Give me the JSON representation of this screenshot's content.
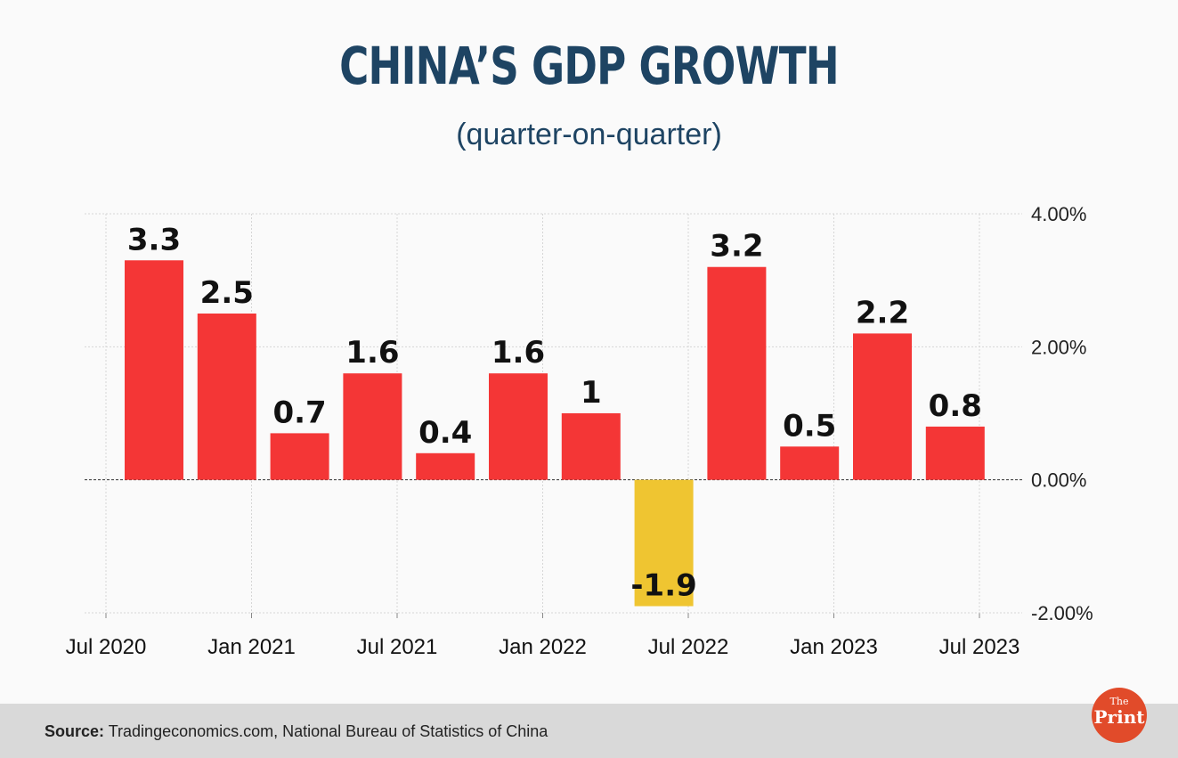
{
  "header": {
    "title": "CHINA’S GDP GROWTH",
    "subtitle": "(quarter-on-quarter)"
  },
  "footer": {
    "source_label": "Source:",
    "source_text": "Tradingeconomics.com, National Bureau of Statistics of China",
    "logo_line1": "The",
    "logo_line2": "Print"
  },
  "colors": {
    "positive_bar": "#f43636",
    "negative_bar": "#efc531",
    "title": "#1e4463"
  },
  "chart_data": {
    "type": "bar",
    "title": "CHINA’S GDP GROWTH",
    "subtitle": "(quarter-on-quarter)",
    "xlabel": "",
    "ylabel": "",
    "ylim": [
      -2,
      4
    ],
    "y_ticks": [
      4,
      2,
      0,
      -2
    ],
    "y_tick_labels": [
      "4.00%",
      "2.00%",
      "0.00%",
      "-2.00%"
    ],
    "x_tick_labels": [
      "Jul 2020",
      "Jan 2021",
      "Jul 2021",
      "Jan 2022",
      "Jul 2022",
      "Jan 2023",
      "Jul 2023"
    ],
    "values": [
      3.3,
      2.5,
      0.7,
      1.6,
      0.4,
      1.6,
      1,
      -1.9,
      3.2,
      0.5,
      2.2,
      0.8
    ],
    "data_labels": [
      "3.3",
      "2.5",
      "0.7",
      "1.6",
      "0.4",
      "1.6",
      "1",
      "-1.9",
      "3.2",
      "0.5",
      "2.2",
      "0.8"
    ],
    "grid": true,
    "y_axis_position": "right"
  }
}
